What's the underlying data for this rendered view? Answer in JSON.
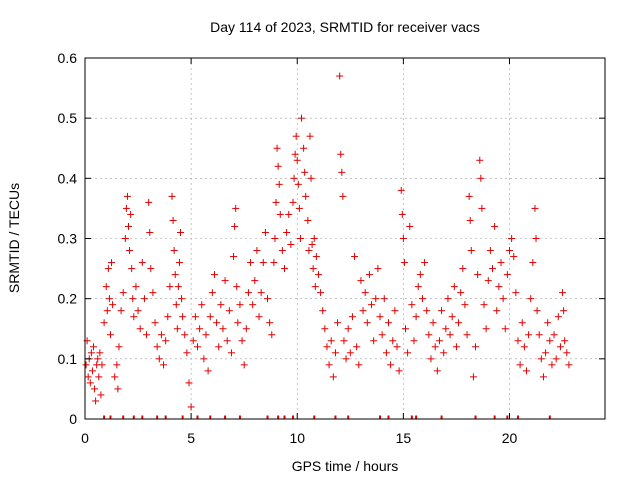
{
  "chart_data": {
    "type": "scatter",
    "title": "Day 114 of 2023, SRMTID for receiver vacs",
    "xlabel": "GPS time / hours",
    "ylabel": "SRMTID / TECUs",
    "xlim": [
      0,
      24.5
    ],
    "ylim": [
      0,
      0.6
    ],
    "grid": true,
    "marker": "+",
    "color": "#e00000",
    "x_ticks": [
      {
        "value": 0,
        "label": "0"
      },
      {
        "value": 5,
        "label": "5"
      },
      {
        "value": 10,
        "label": "10"
      },
      {
        "value": 15,
        "label": "15"
      },
      {
        "value": 20,
        "label": "20"
      }
    ],
    "y_ticks": [
      {
        "value": 0,
        "label": "0"
      },
      {
        "value": 0.1,
        "label": "0.1"
      },
      {
        "value": 0.2,
        "label": "0.2"
      },
      {
        "value": 0.3,
        "label": "0.3"
      },
      {
        "value": 0.4,
        "label": "0.4"
      },
      {
        "value": 0.5,
        "label": "0.5"
      },
      {
        "value": 0.6,
        "label": "0.6"
      }
    ],
    "series": [
      {
        "name": "SRMTID",
        "points": [
          [
            0.05,
            0.09
          ],
          [
            0.1,
            0.13
          ],
          [
            0.15,
            0.07
          ],
          [
            0.2,
            0.1
          ],
          [
            0.25,
            0.06
          ],
          [
            0.3,
            0.11
          ],
          [
            0.35,
            0.08
          ],
          [
            0.4,
            0.12
          ],
          [
            0.45,
            0.05
          ],
          [
            0.5,
            0.03
          ],
          [
            0.55,
            0.09
          ],
          [
            0.6,
            0.1
          ],
          [
            0.65,
            0.07
          ],
          [
            0.7,
            0.11
          ],
          [
            0.75,
            0.04
          ],
          [
            0.8,
            0.09
          ],
          [
            0.9,
            0.16
          ],
          [
            1.0,
            0.22
          ],
          [
            1.05,
            0.18
          ],
          [
            1.1,
            0.25
          ],
          [
            1.15,
            0.2
          ],
          [
            1.2,
            0.14
          ],
          [
            1.25,
            0.26
          ],
          [
            1.3,
            0.19
          ],
          [
            1.4,
            0.07
          ],
          [
            1.5,
            0.09
          ],
          [
            1.55,
            0.05
          ],
          [
            1.6,
            0.12
          ],
          [
            1.7,
            0.18
          ],
          [
            1.8,
            0.21
          ],
          [
            1.9,
            0.3
          ],
          [
            1.95,
            0.35
          ],
          [
            2.0,
            0.37
          ],
          [
            2.05,
            0.32
          ],
          [
            2.1,
            0.28
          ],
          [
            2.15,
            0.34
          ],
          [
            2.2,
            0.25
          ],
          [
            2.25,
            0.2
          ],
          [
            2.3,
            0.17
          ],
          [
            2.4,
            0.22
          ],
          [
            2.5,
            0.18
          ],
          [
            2.6,
            0.15
          ],
          [
            2.7,
            0.26
          ],
          [
            2.8,
            0.2
          ],
          [
            2.9,
            0.14
          ],
          [
            3.0,
            0.36
          ],
          [
            3.05,
            0.31
          ],
          [
            3.1,
            0.25
          ],
          [
            3.2,
            0.21
          ],
          [
            3.3,
            0.16
          ],
          [
            3.4,
            0.12
          ],
          [
            3.5,
            0.1
          ],
          [
            3.6,
            0.14
          ],
          [
            3.7,
            0.09
          ],
          [
            3.8,
            0.13
          ],
          [
            3.9,
            0.17
          ],
          [
            4.0,
            0.22
          ],
          [
            4.1,
            0.37
          ],
          [
            4.15,
            0.33
          ],
          [
            4.2,
            0.28
          ],
          [
            4.25,
            0.24
          ],
          [
            4.3,
            0.19
          ],
          [
            4.35,
            0.15
          ],
          [
            4.4,
            0.22
          ],
          [
            4.45,
            0.26
          ],
          [
            4.5,
            0.31
          ],
          [
            4.55,
            0.2
          ],
          [
            4.6,
            0.17
          ],
          [
            4.7,
            0.14
          ],
          [
            4.8,
            0.11
          ],
          [
            4.9,
            0.06
          ],
          [
            5.0,
            0.02
          ],
          [
            5.1,
            0.13
          ],
          [
            5.2,
            0.17
          ],
          [
            5.3,
            0.12
          ],
          [
            5.4,
            0.15
          ],
          [
            5.5,
            0.19
          ],
          [
            5.6,
            0.1
          ],
          [
            5.7,
            0.14
          ],
          [
            5.8,
            0.08
          ],
          [
            5.9,
            0.17
          ],
          [
            6.0,
            0.21
          ],
          [
            6.1,
            0.24
          ],
          [
            6.2,
            0.16
          ],
          [
            6.3,
            0.12
          ],
          [
            6.4,
            0.19
          ],
          [
            6.5,
            0.15
          ],
          [
            6.6,
            0.23
          ],
          [
            6.7,
            0.13
          ],
          [
            6.8,
            0.18
          ],
          [
            6.9,
            0.11
          ],
          [
            7.0,
            0.27
          ],
          [
            7.05,
            0.32
          ],
          [
            7.1,
            0.35
          ],
          [
            7.15,
            0.22
          ],
          [
            7.2,
            0.16
          ],
          [
            7.3,
            0.19
          ],
          [
            7.4,
            0.13
          ],
          [
            7.5,
            0.09
          ],
          [
            7.6,
            0.15
          ],
          [
            7.7,
            0.21
          ],
          [
            7.8,
            0.26
          ],
          [
            7.9,
            0.19
          ],
          [
            8.0,
            0.23
          ],
          [
            8.1,
            0.28
          ],
          [
            8.2,
            0.17
          ],
          [
            8.3,
            0.21
          ],
          [
            8.4,
            0.26
          ],
          [
            8.5,
            0.31
          ],
          [
            8.6,
            0.2
          ],
          [
            8.7,
            0.16
          ],
          [
            8.8,
            0.14
          ],
          [
            8.9,
            0.26
          ],
          [
            8.95,
            0.3
          ],
          [
            9.0,
            0.36
          ],
          [
            9.05,
            0.45
          ],
          [
            9.1,
            0.42
          ],
          [
            9.15,
            0.39
          ],
          [
            9.2,
            0.34
          ],
          [
            9.3,
            0.28
          ],
          [
            9.4,
            0.25
          ],
          [
            9.5,
            0.31
          ],
          [
            9.6,
            0.34
          ],
          [
            9.7,
            0.29
          ],
          [
            9.8,
            0.36
          ],
          [
            9.85,
            0.4
          ],
          [
            9.9,
            0.44
          ],
          [
            9.95,
            0.47
          ],
          [
            10.0,
            0.43
          ],
          [
            10.05,
            0.39
          ],
          [
            10.1,
            0.35
          ],
          [
            10.15,
            0.3
          ],
          [
            10.2,
            0.5
          ],
          [
            10.3,
            0.45
          ],
          [
            10.35,
            0.41
          ],
          [
            10.4,
            0.37
          ],
          [
            10.5,
            0.33
          ],
          [
            10.55,
            0.28
          ],
          [
            10.6,
            0.47
          ],
          [
            10.65,
            0.4
          ],
          [
            10.7,
            0.29
          ],
          [
            10.75,
            0.25
          ],
          [
            10.8,
            0.3
          ],
          [
            10.85,
            0.22
          ],
          [
            10.9,
            0.27
          ],
          [
            11.0,
            0.24
          ],
          [
            11.1,
            0.21
          ],
          [
            11.2,
            0.18
          ],
          [
            11.3,
            0.15
          ],
          [
            11.4,
            0.12
          ],
          [
            11.5,
            0.09
          ],
          [
            11.6,
            0.13
          ],
          [
            11.7,
            0.07
          ],
          [
            11.8,
            0.11
          ],
          [
            11.9,
            0.16
          ],
          [
            12.0,
            0.57
          ],
          [
            12.05,
            0.44
          ],
          [
            12.1,
            0.41
          ],
          [
            12.15,
            0.37
          ],
          [
            12.2,
            0.13
          ],
          [
            12.3,
            0.1
          ],
          [
            12.4,
            0.15
          ],
          [
            12.5,
            0.11
          ],
          [
            12.6,
            0.17
          ],
          [
            12.7,
            0.27
          ],
          [
            12.8,
            0.12
          ],
          [
            12.9,
            0.09
          ],
          [
            13.0,
            0.23
          ],
          [
            13.1,
            0.18
          ],
          [
            13.2,
            0.21
          ],
          [
            13.3,
            0.16
          ],
          [
            13.4,
            0.24
          ],
          [
            13.5,
            0.19
          ],
          [
            13.6,
            0.13
          ],
          [
            13.7,
            0.2
          ],
          [
            13.8,
            0.25
          ],
          [
            13.9,
            0.17
          ],
          [
            14.0,
            0.14
          ],
          [
            14.1,
            0.2
          ],
          [
            14.2,
            0.11
          ],
          [
            14.3,
            0.16
          ],
          [
            14.4,
            0.09
          ],
          [
            14.5,
            0.13
          ],
          [
            14.6,
            0.18
          ],
          [
            14.7,
            0.12
          ],
          [
            14.8,
            0.08
          ],
          [
            14.9,
            0.38
          ],
          [
            14.95,
            0.34
          ],
          [
            15.0,
            0.3
          ],
          [
            15.05,
            0.26
          ],
          [
            15.1,
            0.15
          ],
          [
            15.2,
            0.11
          ],
          [
            15.3,
            0.32
          ],
          [
            15.4,
            0.19
          ],
          [
            15.5,
            0.13
          ],
          [
            15.6,
            0.17
          ],
          [
            15.7,
            0.22
          ],
          [
            15.8,
            0.24
          ],
          [
            15.9,
            0.2
          ],
          [
            16.0,
            0.26
          ],
          [
            16.1,
            0.18
          ],
          [
            16.2,
            0.14
          ],
          [
            16.3,
            0.1
          ],
          [
            16.4,
            0.16
          ],
          [
            16.5,
            0.12
          ],
          [
            16.6,
            0.08
          ],
          [
            16.7,
            0.13
          ],
          [
            16.8,
            0.18
          ],
          [
            16.9,
            0.11
          ],
          [
            17.0,
            0.15
          ],
          [
            17.1,
            0.2
          ],
          [
            17.2,
            0.14
          ],
          [
            17.3,
            0.17
          ],
          [
            17.4,
            0.22
          ],
          [
            17.5,
            0.12
          ],
          [
            17.6,
            0.16
          ],
          [
            17.7,
            0.21
          ],
          [
            17.8,
            0.25
          ],
          [
            17.9,
            0.19
          ],
          [
            18.0,
            0.14
          ],
          [
            18.1,
            0.37
          ],
          [
            18.15,
            0.33
          ],
          [
            18.2,
            0.28
          ],
          [
            18.3,
            0.07
          ],
          [
            18.4,
            0.12
          ],
          [
            18.5,
            0.24
          ],
          [
            18.6,
            0.43
          ],
          [
            18.65,
            0.4
          ],
          [
            18.7,
            0.35
          ],
          [
            18.8,
            0.19
          ],
          [
            18.9,
            0.15
          ],
          [
            19.0,
            0.23
          ],
          [
            19.1,
            0.28
          ],
          [
            19.2,
            0.25
          ],
          [
            19.3,
            0.32
          ],
          [
            19.4,
            0.18
          ],
          [
            19.5,
            0.22
          ],
          [
            19.6,
            0.26
          ],
          [
            19.7,
            0.2
          ],
          [
            19.8,
            0.15
          ],
          [
            19.9,
            0.24
          ],
          [
            20.0,
            0.28
          ],
          [
            20.1,
            0.3
          ],
          [
            20.2,
            0.27
          ],
          [
            20.3,
            0.21
          ],
          [
            20.4,
            0.13
          ],
          [
            20.5,
            0.09
          ],
          [
            20.6,
            0.16
          ],
          [
            20.7,
            0.12
          ],
          [
            20.8,
            0.08
          ],
          [
            20.9,
            0.14
          ],
          [
            21.0,
            0.2
          ],
          [
            21.1,
            0.26
          ],
          [
            21.2,
            0.35
          ],
          [
            21.25,
            0.3
          ],
          [
            21.3,
            0.18
          ],
          [
            21.4,
            0.14
          ],
          [
            21.5,
            0.1
          ],
          [
            21.6,
            0.07
          ],
          [
            21.7,
            0.11
          ],
          [
            21.8,
            0.16
          ],
          [
            21.9,
            0.13
          ],
          [
            22.0,
            0.09
          ],
          [
            22.1,
            0.14
          ],
          [
            22.2,
            0.1
          ],
          [
            22.3,
            0.17
          ],
          [
            22.4,
            0.12
          ],
          [
            22.5,
            0.21
          ],
          [
            22.55,
            0.18
          ],
          [
            22.6,
            0.13
          ],
          [
            22.7,
            0.11
          ],
          [
            22.8,
            0.09
          ]
        ]
      }
    ],
    "zero_markers_x": [
      0.9,
      1.2,
      1.8,
      2.3,
      2.7,
      3.4,
      3.8,
      4.6,
      5.3,
      5.9,
      6.6,
      7.3,
      8.6,
      9.1,
      9.4,
      9.8,
      10.8,
      11.8,
      12.4,
      13.9,
      14.3,
      15.4,
      15.6,
      16.8,
      18.4,
      19.3,
      19.9,
      20.4,
      21.9
    ]
  }
}
